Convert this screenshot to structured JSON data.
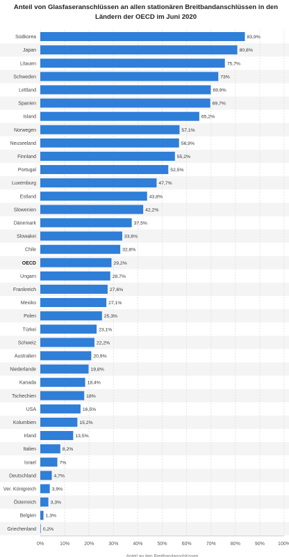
{
  "chart_data": {
    "type": "bar",
    "orientation": "horizontal",
    "title": "Anteil von Glasfaseranschlüssen an allen stationären Breitbandanschlüssen in den Ländern der OECD im Juni 2020",
    "xlabel": "Anteil an den Breitbandanschlüssen",
    "ylabel": "",
    "xlim": [
      0,
      100
    ],
    "ticks": [
      "0%",
      "10%",
      "20%",
      "30%",
      "40%",
      "50%",
      "60%",
      "70%",
      "80%",
      "90%",
      "100%"
    ],
    "grid": true,
    "bar_color": "#2f7ed8",
    "highlight_category": "OECD",
    "categories": [
      "Südkorea",
      "Japan",
      "Litauen",
      "Schweden",
      "Lettland",
      "Spanien",
      "Island",
      "Norwegen",
      "Neuseeland",
      "Finnland",
      "Portugal",
      "Luxemburg",
      "Estland",
      "Slowenien",
      "Dänemark",
      "Slowakei",
      "Chile",
      "OECD",
      "Ungarn",
      "Frankreich",
      "Mexiko",
      "Polen",
      "Türkei",
      "Schweiz",
      "Australien",
      "Niederlande",
      "Kanada",
      "Tschechien",
      "USA",
      "Kolumbien",
      "Irland",
      "Italien",
      "Israel",
      "Deutschland",
      "Ver. Königreich",
      "Österreich",
      "Belgien",
      "Griechenland"
    ],
    "values": [
      83.9,
      80.8,
      75.7,
      73,
      69.9,
      69.7,
      65.2,
      57.1,
      56.9,
      55.2,
      52.5,
      47.7,
      43.8,
      42.2,
      37.5,
      33.6,
      32.8,
      29.2,
      28.7,
      27.6,
      27.1,
      25.3,
      23.1,
      22.2,
      20.9,
      19.8,
      18.4,
      18,
      16.5,
      15.2,
      13.5,
      8.2,
      7,
      4.7,
      3.9,
      3.3,
      1.3,
      0.2
    ],
    "value_labels": [
      "83,9%",
      "80,8%",
      "75,7%",
      "73%",
      "69,9%",
      "69,7%",
      "65,2%",
      "57,1%",
      "56,9%",
      "55,2%",
      "52,5%",
      "47,7%",
      "43,8%",
      "42,2%",
      "37,5%",
      "33,6%",
      "32,8%",
      "29,2%",
      "28,7%",
      "27,6%",
      "27,1%",
      "25,3%",
      "23,1%",
      "22,2%",
      "20,9%",
      "19,8%",
      "18,4%",
      "18%",
      "16,5%",
      "15,2%",
      "13,5%",
      "8,2%",
      "7%",
      "4,7%",
      "3,9%",
      "3,3%",
      "1,3%",
      "0,2%"
    ]
  }
}
